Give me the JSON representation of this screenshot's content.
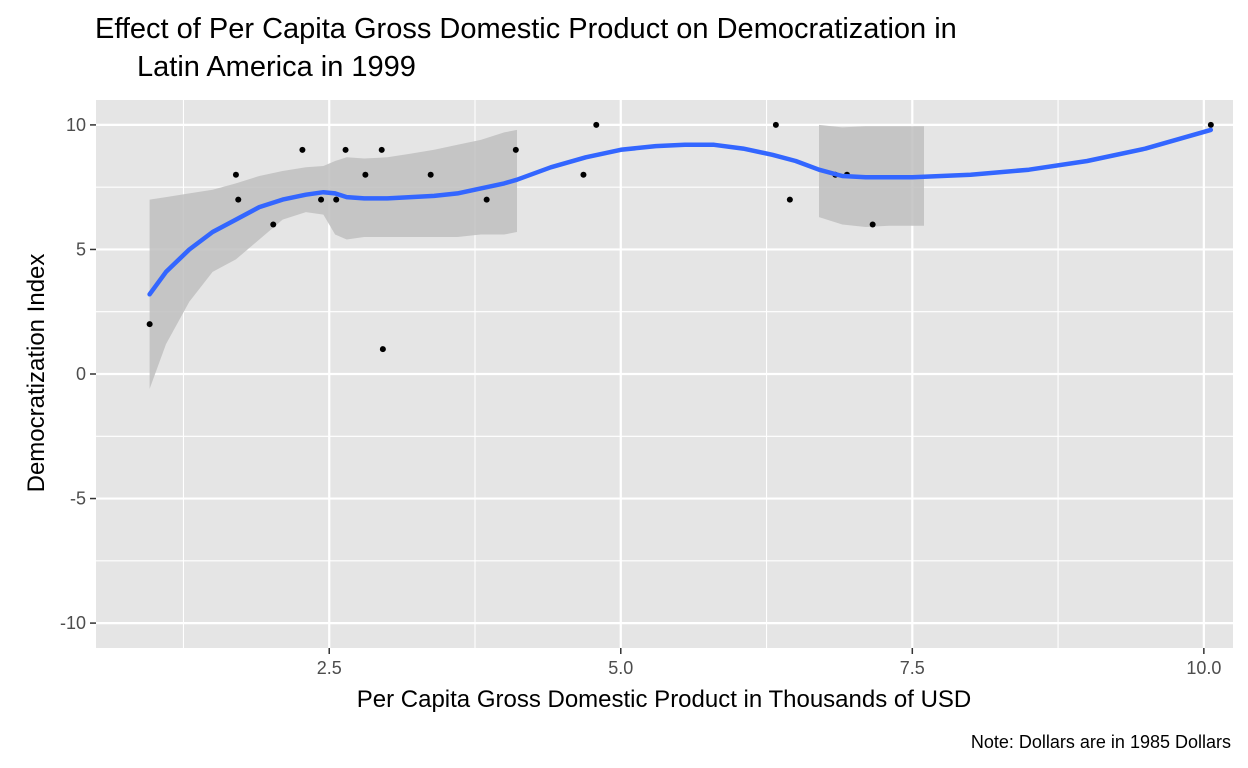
{
  "chart_data": {
    "type": "scatter",
    "title": "Effect of Per Capita Gross Domestic Product on Democratization in Latin America in 1999",
    "title_lines": [
      "Effect of Per Capita Gross Domestic Product on Democratization in",
      "Latin America in 1999"
    ],
    "xlabel": "Per Capita Gross Domestic Product in Thousands of USD",
    "ylabel": "Democratization Index",
    "caption": "Note: Dollars are in 1985 Dollars",
    "xlim": [
      0.5,
      10.25
    ],
    "ylim": [
      -11,
      11
    ],
    "x_ticks": [
      2.5,
      5.0,
      7.5,
      10.0
    ],
    "x_tick_labels": [
      "2.5",
      "5.0",
      "7.5",
      "10.0"
    ],
    "y_ticks": [
      -10,
      -5,
      0,
      5,
      10
    ],
    "y_tick_labels": [
      "-10",
      "-5",
      "0",
      "5",
      "10"
    ],
    "grid": true,
    "colors": {
      "panel": "#e5e5e5",
      "grid": "#ffffff",
      "point": "#000000",
      "smooth": "#3366ff",
      "ribbon": "#bfbfbf"
    },
    "points": [
      {
        "x": 0.96,
        "y": 2
      },
      {
        "x": 1.7,
        "y": 8
      },
      {
        "x": 1.72,
        "y": 7
      },
      {
        "x": 2.02,
        "y": 6
      },
      {
        "x": 2.27,
        "y": 9
      },
      {
        "x": 2.43,
        "y": 7
      },
      {
        "x": 2.56,
        "y": 7
      },
      {
        "x": 2.64,
        "y": 9
      },
      {
        "x": 2.81,
        "y": 8
      },
      {
        "x": 2.95,
        "y": 9
      },
      {
        "x": 2.96,
        "y": 1
      },
      {
        "x": 3.37,
        "y": 8
      },
      {
        "x": 3.85,
        "y": 7
      },
      {
        "x": 4.1,
        "y": 9
      },
      {
        "x": 4.68,
        "y": 8
      },
      {
        "x": 4.79,
        "y": 10
      },
      {
        "x": 6.33,
        "y": 10
      },
      {
        "x": 6.45,
        "y": 7
      },
      {
        "x": 6.84,
        "y": 8
      },
      {
        "x": 6.94,
        "y": 8
      },
      {
        "x": 7.16,
        "y": 6
      },
      {
        "x": 10.06,
        "y": 10
      }
    ],
    "smooth": {
      "name": "loess",
      "segments": [
        {
          "x": [
            0.96,
            1.1,
            1.3,
            1.5,
            1.7,
            1.9,
            2.1,
            2.3,
            2.45,
            2.55,
            2.65,
            2.8,
            3.0,
            3.2,
            3.4,
            3.6,
            3.8,
            4.0,
            4.11
          ],
          "y": [
            3.2,
            4.1,
            5.0,
            5.7,
            6.2,
            6.7,
            7.0,
            7.2,
            7.3,
            7.25,
            7.1,
            7.05,
            7.05,
            7.1,
            7.15,
            7.25,
            7.45,
            7.65,
            7.8
          ],
          "ymin": [
            -0.6,
            1.2,
            2.9,
            4.1,
            4.6,
            5.4,
            6.2,
            6.5,
            6.4,
            5.6,
            5.4,
            5.5,
            5.5,
            5.5,
            5.5,
            5.5,
            5.6,
            5.6,
            5.7
          ],
          "ymax": [
            7.0,
            7.1,
            7.25,
            7.4,
            7.65,
            7.95,
            8.15,
            8.3,
            8.35,
            8.55,
            8.7,
            8.65,
            8.7,
            8.85,
            9.0,
            9.2,
            9.4,
            9.7,
            9.8
          ]
        },
        {
          "x": [
            4.11,
            4.4,
            4.7,
            5.0,
            5.3,
            5.55,
            5.8,
            6.05,
            6.3,
            6.5,
            6.7
          ],
          "y": [
            7.8,
            8.3,
            8.7,
            9.0,
            9.15,
            9.2,
            9.2,
            9.05,
            8.8,
            8.55,
            8.2
          ]
        },
        {
          "x": [
            6.7,
            6.9,
            7.1,
            7.3,
            7.5,
            7.6
          ],
          "y": [
            8.2,
            7.95,
            7.9,
            7.9,
            7.9,
            7.92
          ],
          "ymin": [
            6.3,
            6.0,
            5.9,
            5.95,
            5.95,
            5.95
          ],
          "ymax": [
            10.0,
            9.9,
            9.95,
            9.95,
            9.95,
            9.95
          ]
        },
        {
          "x": [
            7.6,
            8.0,
            8.5,
            9.0,
            9.5,
            10.06
          ],
          "y": [
            7.92,
            8.0,
            8.2,
            8.55,
            9.05,
            9.8
          ]
        }
      ]
    }
  }
}
